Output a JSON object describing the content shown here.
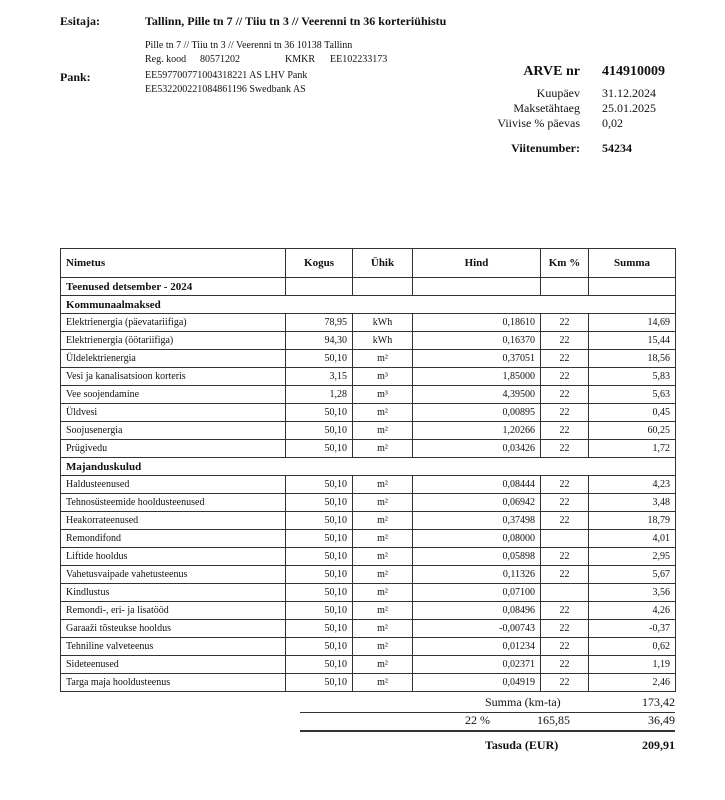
{
  "header": {
    "seller_label": "Esitaja:",
    "seller_name": "Tallinn, Pille tn 7 // Tiiu tn 3 // Veerenni tn 36 korteriühistu",
    "address": "Pille tn 7 // Tiiu tn 3 // Veerenni tn 36 10138  Tallinn",
    "reg_label": "Reg. kood",
    "reg_code": "80571202",
    "vat_label": "KMKR",
    "vat_code": "EE102233173",
    "bank_label": "Pank:",
    "banks": [
      "EE597700771004318221 AS LHV Pank",
      "EE532200221084861196 Swedbank AS"
    ]
  },
  "invoice": {
    "title": "ARVE nr",
    "number": "414910009",
    "fields": [
      {
        "label": "Kuupäev",
        "value": "31.12.2024"
      },
      {
        "label": "Maksetähtaeg",
        "value": "25.01.2025"
      },
      {
        "label": "Viivise % päevas",
        "value": "0,02"
      }
    ],
    "ref_label": "Viitenumber:",
    "ref": "54234"
  },
  "table": {
    "columns": [
      "Nimetus",
      "Kogus",
      "Ühik",
      "Hind",
      "Km %",
      "Summa"
    ],
    "period": "Teenused detsember - 2024",
    "groups": [
      {
        "title": "Kommunaalmaksed",
        "rows": [
          {
            "name": "Elektrienergia (päevatariifiga)",
            "qty": "78,95",
            "unit": "kWh",
            "price": "0,18610",
            "vat": "22",
            "sum": "14,69"
          },
          {
            "name": "Elektrienergia (öötariifiga)",
            "qty": "94,30",
            "unit": "kWh",
            "price": "0,16370",
            "vat": "22",
            "sum": "15,44"
          },
          {
            "name": "Üldelektrienergia",
            "qty": "50,10",
            "unit": "m²",
            "price": "0,37051",
            "vat": "22",
            "sum": "18,56"
          },
          {
            "name": "Vesi ja kanalisatsioon korteris",
            "qty": "3,15",
            "unit": "m³",
            "price": "1,85000",
            "vat": "22",
            "sum": "5,83"
          },
          {
            "name": "Vee soojendamine",
            "qty": "1,28",
            "unit": "m³",
            "price": "4,39500",
            "vat": "22",
            "sum": "5,63"
          },
          {
            "name": "Üldvesi",
            "qty": "50,10",
            "unit": "m²",
            "price": "0,00895",
            "vat": "22",
            "sum": "0,45"
          },
          {
            "name": "Soojusenergia",
            "qty": "50,10",
            "unit": "m²",
            "price": "1,20266",
            "vat": "22",
            "sum": "60,25"
          },
          {
            "name": "Prügivedu",
            "qty": "50,10",
            "unit": "m²",
            "price": "0,03426",
            "vat": "22",
            "sum": "1,72"
          }
        ]
      },
      {
        "title": "Majanduskulud",
        "rows": [
          {
            "name": "Haldusteenused",
            "qty": "50,10",
            "unit": "m²",
            "price": "0,08444",
            "vat": "22",
            "sum": "4,23"
          },
          {
            "name": "Tehnosüsteemide hooldusteenused",
            "qty": "50,10",
            "unit": "m²",
            "price": "0,06942",
            "vat": "22",
            "sum": "3,48"
          },
          {
            "name": "Heakorrateenused",
            "qty": "50,10",
            "unit": "m²",
            "price": "0,37498",
            "vat": "22",
            "sum": "18,79"
          },
          {
            "name": "Remondifond",
            "qty": "50,10",
            "unit": "m²",
            "price": "0,08000",
            "sum": "4,01"
          },
          {
            "name": "Liftide hooldus",
            "qty": "50,10",
            "unit": "m²",
            "price": "0,05898",
            "vat": "22",
            "sum": "2,95"
          },
          {
            "name": "Vahetusvaipade vahetusteenus",
            "qty": "50,10",
            "unit": "m²",
            "price": "0,11326",
            "vat": "22",
            "sum": "5,67"
          },
          {
            "name": "Kindlustus",
            "qty": "50,10",
            "unit": "m²",
            "price": "0,07100",
            "sum": "3,56"
          },
          {
            "name": "Remondi-, eri- ja lisatööd",
            "qty": "50,10",
            "unit": "m²",
            "price": "0,08496",
            "vat": "22",
            "sum": "4,26"
          },
          {
            "name": "Garaaži tõsteukse hooldus",
            "qty": "50,10",
            "unit": "m²",
            "price": "-0,00743",
            "vat": "22",
            "sum": "-0,37"
          },
          {
            "name": "Tehniline valveteenus",
            "qty": "50,10",
            "unit": "m²",
            "price": "0,01234",
            "vat": "22",
            "sum": "0,62"
          },
          {
            "name": "Sideteenused",
            "qty": "50,10",
            "unit": "m²",
            "price": "0,02371",
            "vat": "22",
            "sum": "1,19"
          },
          {
            "name": "Targa maja hooldusteenus",
            "qty": "50,10",
            "unit": "m²",
            "price": "0,04919",
            "vat": "22",
            "sum": "2,46"
          }
        ]
      }
    ]
  },
  "totals": {
    "net_label": "Summa (km-ta)",
    "net": "173,42",
    "vat_rate": "22 %",
    "vat_base": "165,85",
    "vat": "36,49",
    "due_label": "Tasuda (EUR)",
    "due": "209,91"
  }
}
